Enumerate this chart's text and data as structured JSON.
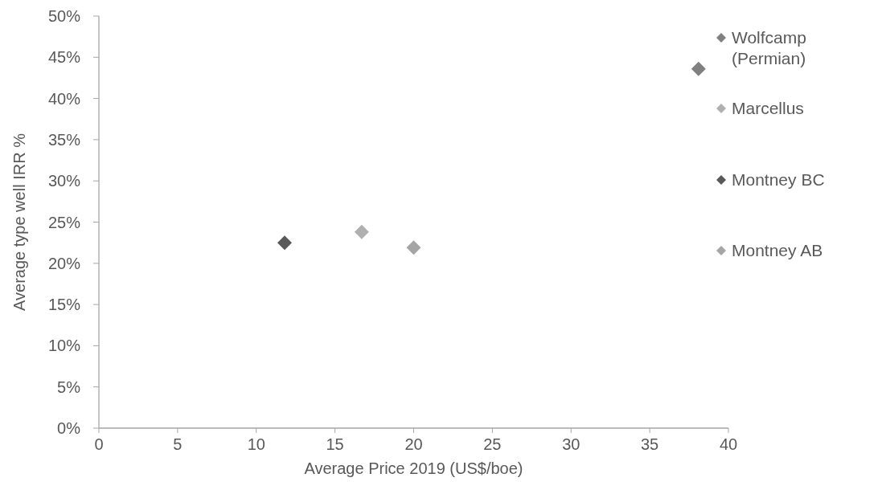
{
  "chart_data": {
    "type": "scatter",
    "xlabel": "Average Price 2019 (US$/boe)",
    "ylabel": "Average type well IRR %",
    "marker": "diamond",
    "legend": "right",
    "grid": false,
    "xlim": [
      0,
      40
    ],
    "xticks": [
      0,
      5,
      10,
      15,
      20,
      25,
      30,
      35,
      40
    ],
    "ylim": [
      0,
      50
    ],
    "yticks": [
      {
        "value": 0,
        "label": "0%"
      },
      {
        "value": 5,
        "label": "5%"
      },
      {
        "value": 10,
        "label": "10%"
      },
      {
        "value": 15,
        "label": "15%"
      },
      {
        "value": 20,
        "label": "20%"
      },
      {
        "value": 25,
        "label": "25%"
      },
      {
        "value": 30,
        "label": "30%"
      },
      {
        "value": 35,
        "label": "35%"
      },
      {
        "value": 40,
        "label": "40%"
      },
      {
        "value": 45,
        "label": "45%"
      },
      {
        "value": 50,
        "label": "50%"
      }
    ],
    "series": [
      {
        "name": "Wolfcamp (Permian)",
        "color": "#808080",
        "x": [
          38.1
        ],
        "values": [
          43.6
        ]
      },
      {
        "name": "Marcellus",
        "color": "#b0b0b0",
        "x": [
          16.7
        ],
        "values": [
          23.8
        ]
      },
      {
        "name": "Montney BC",
        "color": "#595959",
        "x": [
          11.8
        ],
        "values": [
          22.5
        ]
      },
      {
        "name": "Montney AB",
        "color": "#a5a5a5",
        "x": [
          20.0
        ],
        "values": [
          21.9
        ]
      }
    ]
  }
}
